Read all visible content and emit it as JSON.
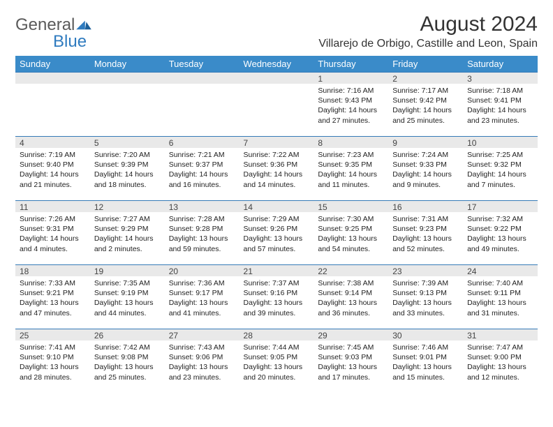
{
  "brand": {
    "part1": "General",
    "part2": "Blue"
  },
  "title": "August 2024",
  "location": "Villarejo de Orbigo, Castille and Leon, Spain",
  "colors": {
    "header_bg": "#3a8bc9",
    "header_text": "#ffffff",
    "row_divider": "#357ab7",
    "daynum_bg": "#e9e9e9",
    "text": "#222222",
    "logo_gray": "#5a5a5a",
    "logo_blue": "#2f7bbf"
  },
  "weekdays": [
    "Sunday",
    "Monday",
    "Tuesday",
    "Wednesday",
    "Thursday",
    "Friday",
    "Saturday"
  ],
  "weeks": [
    [
      {
        "day": "",
        "sunrise": "",
        "sunset": "",
        "daylight": ""
      },
      {
        "day": "",
        "sunrise": "",
        "sunset": "",
        "daylight": ""
      },
      {
        "day": "",
        "sunrise": "",
        "sunset": "",
        "daylight": ""
      },
      {
        "day": "",
        "sunrise": "",
        "sunset": "",
        "daylight": ""
      },
      {
        "day": "1",
        "sunrise": "Sunrise: 7:16 AM",
        "sunset": "Sunset: 9:43 PM",
        "daylight": "Daylight: 14 hours and 27 minutes."
      },
      {
        "day": "2",
        "sunrise": "Sunrise: 7:17 AM",
        "sunset": "Sunset: 9:42 PM",
        "daylight": "Daylight: 14 hours and 25 minutes."
      },
      {
        "day": "3",
        "sunrise": "Sunrise: 7:18 AM",
        "sunset": "Sunset: 9:41 PM",
        "daylight": "Daylight: 14 hours and 23 minutes."
      }
    ],
    [
      {
        "day": "4",
        "sunrise": "Sunrise: 7:19 AM",
        "sunset": "Sunset: 9:40 PM",
        "daylight": "Daylight: 14 hours and 21 minutes."
      },
      {
        "day": "5",
        "sunrise": "Sunrise: 7:20 AM",
        "sunset": "Sunset: 9:39 PM",
        "daylight": "Daylight: 14 hours and 18 minutes."
      },
      {
        "day": "6",
        "sunrise": "Sunrise: 7:21 AM",
        "sunset": "Sunset: 9:37 PM",
        "daylight": "Daylight: 14 hours and 16 minutes."
      },
      {
        "day": "7",
        "sunrise": "Sunrise: 7:22 AM",
        "sunset": "Sunset: 9:36 PM",
        "daylight": "Daylight: 14 hours and 14 minutes."
      },
      {
        "day": "8",
        "sunrise": "Sunrise: 7:23 AM",
        "sunset": "Sunset: 9:35 PM",
        "daylight": "Daylight: 14 hours and 11 minutes."
      },
      {
        "day": "9",
        "sunrise": "Sunrise: 7:24 AM",
        "sunset": "Sunset: 9:33 PM",
        "daylight": "Daylight: 14 hours and 9 minutes."
      },
      {
        "day": "10",
        "sunrise": "Sunrise: 7:25 AM",
        "sunset": "Sunset: 9:32 PM",
        "daylight": "Daylight: 14 hours and 7 minutes."
      }
    ],
    [
      {
        "day": "11",
        "sunrise": "Sunrise: 7:26 AM",
        "sunset": "Sunset: 9:31 PM",
        "daylight": "Daylight: 14 hours and 4 minutes."
      },
      {
        "day": "12",
        "sunrise": "Sunrise: 7:27 AM",
        "sunset": "Sunset: 9:29 PM",
        "daylight": "Daylight: 14 hours and 2 minutes."
      },
      {
        "day": "13",
        "sunrise": "Sunrise: 7:28 AM",
        "sunset": "Sunset: 9:28 PM",
        "daylight": "Daylight: 13 hours and 59 minutes."
      },
      {
        "day": "14",
        "sunrise": "Sunrise: 7:29 AM",
        "sunset": "Sunset: 9:26 PM",
        "daylight": "Daylight: 13 hours and 57 minutes."
      },
      {
        "day": "15",
        "sunrise": "Sunrise: 7:30 AM",
        "sunset": "Sunset: 9:25 PM",
        "daylight": "Daylight: 13 hours and 54 minutes."
      },
      {
        "day": "16",
        "sunrise": "Sunrise: 7:31 AM",
        "sunset": "Sunset: 9:23 PM",
        "daylight": "Daylight: 13 hours and 52 minutes."
      },
      {
        "day": "17",
        "sunrise": "Sunrise: 7:32 AM",
        "sunset": "Sunset: 9:22 PM",
        "daylight": "Daylight: 13 hours and 49 minutes."
      }
    ],
    [
      {
        "day": "18",
        "sunrise": "Sunrise: 7:33 AM",
        "sunset": "Sunset: 9:21 PM",
        "daylight": "Daylight: 13 hours and 47 minutes."
      },
      {
        "day": "19",
        "sunrise": "Sunrise: 7:35 AM",
        "sunset": "Sunset: 9:19 PM",
        "daylight": "Daylight: 13 hours and 44 minutes."
      },
      {
        "day": "20",
        "sunrise": "Sunrise: 7:36 AM",
        "sunset": "Sunset: 9:17 PM",
        "daylight": "Daylight: 13 hours and 41 minutes."
      },
      {
        "day": "21",
        "sunrise": "Sunrise: 7:37 AM",
        "sunset": "Sunset: 9:16 PM",
        "daylight": "Daylight: 13 hours and 39 minutes."
      },
      {
        "day": "22",
        "sunrise": "Sunrise: 7:38 AM",
        "sunset": "Sunset: 9:14 PM",
        "daylight": "Daylight: 13 hours and 36 minutes."
      },
      {
        "day": "23",
        "sunrise": "Sunrise: 7:39 AM",
        "sunset": "Sunset: 9:13 PM",
        "daylight": "Daylight: 13 hours and 33 minutes."
      },
      {
        "day": "24",
        "sunrise": "Sunrise: 7:40 AM",
        "sunset": "Sunset: 9:11 PM",
        "daylight": "Daylight: 13 hours and 31 minutes."
      }
    ],
    [
      {
        "day": "25",
        "sunrise": "Sunrise: 7:41 AM",
        "sunset": "Sunset: 9:10 PM",
        "daylight": "Daylight: 13 hours and 28 minutes."
      },
      {
        "day": "26",
        "sunrise": "Sunrise: 7:42 AM",
        "sunset": "Sunset: 9:08 PM",
        "daylight": "Daylight: 13 hours and 25 minutes."
      },
      {
        "day": "27",
        "sunrise": "Sunrise: 7:43 AM",
        "sunset": "Sunset: 9:06 PM",
        "daylight": "Daylight: 13 hours and 23 minutes."
      },
      {
        "day": "28",
        "sunrise": "Sunrise: 7:44 AM",
        "sunset": "Sunset: 9:05 PM",
        "daylight": "Daylight: 13 hours and 20 minutes."
      },
      {
        "day": "29",
        "sunrise": "Sunrise: 7:45 AM",
        "sunset": "Sunset: 9:03 PM",
        "daylight": "Daylight: 13 hours and 17 minutes."
      },
      {
        "day": "30",
        "sunrise": "Sunrise: 7:46 AM",
        "sunset": "Sunset: 9:01 PM",
        "daylight": "Daylight: 13 hours and 15 minutes."
      },
      {
        "day": "31",
        "sunrise": "Sunrise: 7:47 AM",
        "sunset": "Sunset: 9:00 PM",
        "daylight": "Daylight: 13 hours and 12 minutes."
      }
    ]
  ]
}
